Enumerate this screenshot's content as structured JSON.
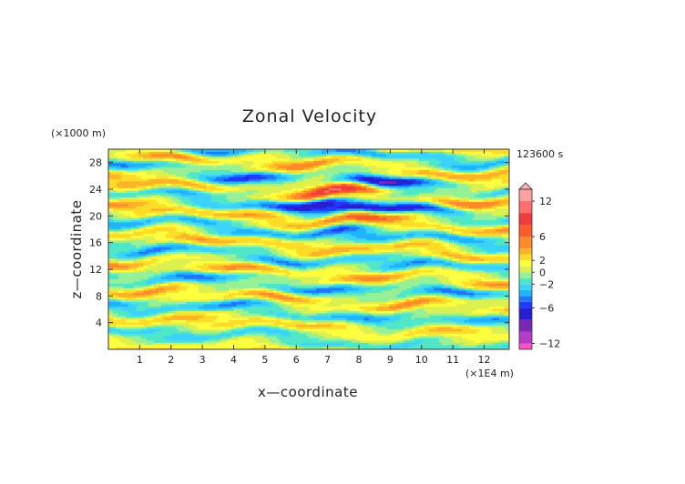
{
  "chart_data": {
    "type": "heatmap",
    "title": "Zonal Velocity",
    "xlabel": "x—coordinate",
    "ylabel": "z—coordinate",
    "x_unit": "(×1E4 m)",
    "y_unit": "(×1000 m)",
    "time_label": "123600 s",
    "xlim": [
      0,
      12.8
    ],
    "ylim": [
      0,
      30
    ],
    "x_ticks": [
      "1",
      "2",
      "3",
      "4",
      "5",
      "6",
      "7",
      "8",
      "9",
      "10",
      "11",
      "12"
    ],
    "y_ticks": [
      "4",
      "8",
      "12",
      "16",
      "20",
      "24",
      "28"
    ],
    "color_levels": [
      -13,
      -12,
      -10,
      -8,
      -6,
      -5,
      -4,
      -3,
      -2,
      -1,
      0,
      1,
      2,
      3,
      4,
      6,
      8,
      10,
      12,
      14
    ],
    "level_colors": [
      "#ff50c8",
      "#b43cc8",
      "#7828b4",
      "#281ed2",
      "#1e3cff",
      "#1e78ff",
      "#1eb4ff",
      "#3cd2ff",
      "#50e6c8",
      "#96f096",
      "#dcf050",
      "#ffff40",
      "#ffdc28",
      "#ffb428",
      "#ff8c28",
      "#ff5a28",
      "#f03c3c",
      "#ff6e6e",
      "#ffa0a0",
      "#ffb4b4"
    ],
    "colorbar_labels": [
      "12",
      "6",
      "2",
      "0",
      "−2",
      "−6",
      "−12"
    ],
    "colorbar_label_values": [
      12,
      6,
      2,
      0,
      -2,
      -6,
      -12
    ],
    "field_description": "banded zonal velocity, m/s, horizontal layers tilting with height"
  }
}
